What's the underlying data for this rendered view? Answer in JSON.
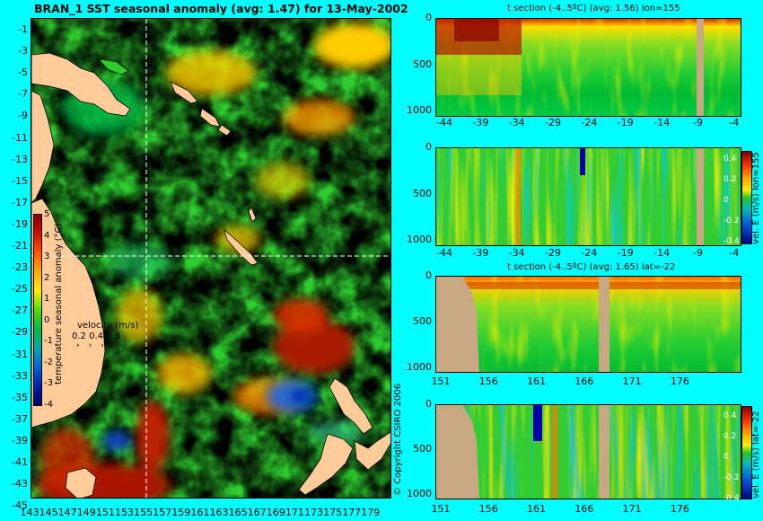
{
  "main_title": "BRAN_1 SST seasonal anomaly (avg: 1.47) for 13-May-2002",
  "map": {
    "lat_ticks": [
      "-1",
      "-3",
      "-5",
      "-7",
      "-9",
      "-11",
      "-13",
      "-15",
      "-17",
      "-19",
      "-21",
      "-23",
      "-25",
      "-27",
      "-29",
      "-31",
      "-33",
      "-35",
      "-37",
      "-39",
      "-41",
      "-43",
      "-45"
    ],
    "lon_ticks": [
      "143",
      "145",
      "147",
      "149",
      "151",
      "153",
      "155",
      "157",
      "159",
      "161",
      "163",
      "165",
      "167",
      "169",
      "171",
      "173",
      "175",
      "177",
      "179"
    ],
    "colorbar_ticks": [
      "5",
      "4",
      "3",
      "2",
      "1",
      "0",
      "-1",
      "-2",
      "-3",
      "-4"
    ],
    "colorbar_label": "temperature seasonal anomaly (°C)",
    "velocity_label": "velocity (m/s)",
    "velocity_scale": "0.2 0.4 0.8",
    "section_lon": 155,
    "section_lat": -22
  },
  "panels": [
    {
      "title": "t section (-4..5ºC) (avg: 1.56) lon=155",
      "y_ticks": [
        "0",
        "500",
        "1000"
      ],
      "x_ticks": [
        "-44",
        "-39",
        "-34",
        "-29",
        "-24",
        "-19",
        "-14",
        "-9",
        "-4"
      ]
    },
    {
      "title": "",
      "y_ticks": [
        "0",
        "500",
        "1000"
      ],
      "x_ticks": [
        "-44",
        "-39",
        "-34",
        "-29",
        "-24",
        "-19",
        "-14",
        "-9",
        "-4"
      ],
      "colorbar_label": "vel. E (m/s) lon=155",
      "colorbar_ticks": [
        "0.4",
        "0.2",
        "0",
        "-0.2",
        "-0.4"
      ]
    },
    {
      "title": "t section (-4..5ºC) (avg: 1.65) lat=-22",
      "y_ticks": [
        "0",
        "500",
        "1000"
      ],
      "x_ticks": [
        "151",
        "156",
        "161",
        "166",
        "171",
        "176"
      ]
    },
    {
      "title": "",
      "y_ticks": [
        "0",
        "500",
        "1000"
      ],
      "x_ticks": [
        "151",
        "156",
        "161",
        "166",
        "171",
        "176"
      ],
      "colorbar_label": "vel. E (m/s) lat=-22",
      "colorbar_ticks": [
        "0.4",
        "0.2",
        "0",
        "-0.2",
        "-0.4"
      ]
    }
  ],
  "copyright": "© Copyright CSIRO 2006"
}
